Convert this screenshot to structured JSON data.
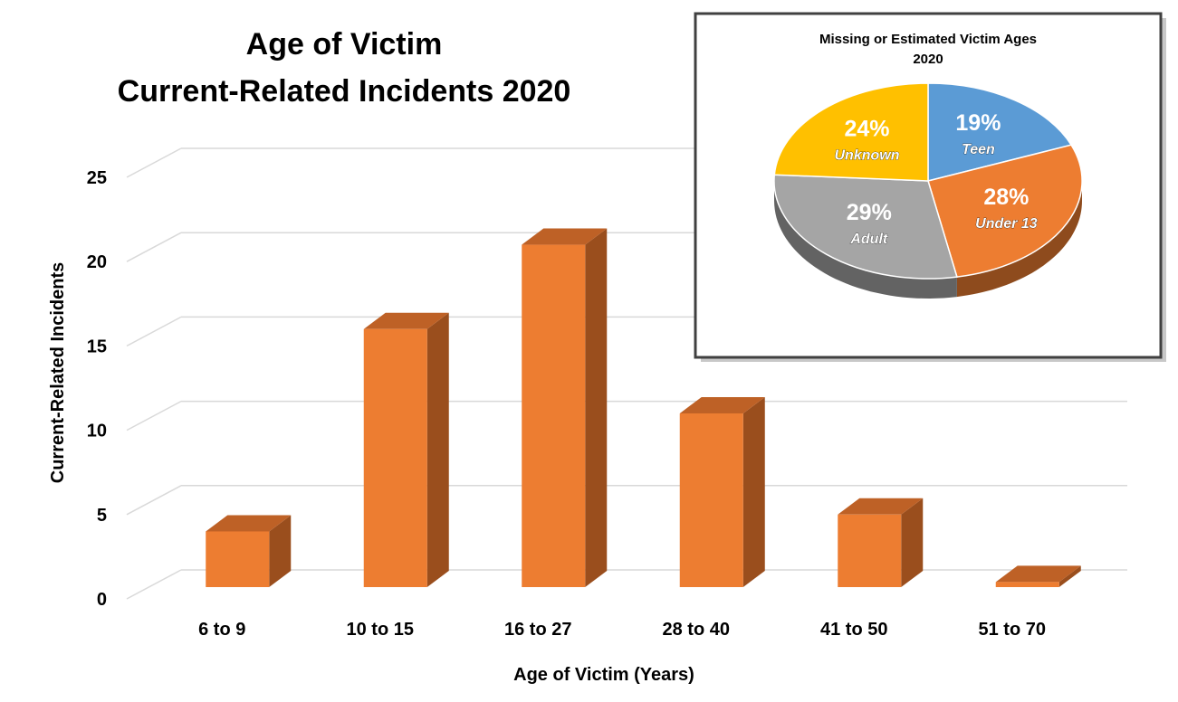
{
  "chart_data": [
    {
      "type": "bar",
      "title": "Age of Victim",
      "subtitle": "Current-Related Incidents 2020",
      "xlabel": "Age of Victim (Years)",
      "ylabel": "Current-Related Incidents",
      "categories": [
        "6 to 9",
        "10 to 15",
        "16 to 27",
        "28 to 40",
        "41 to 50",
        "51 to 70"
      ],
      "values": [
        4,
        16,
        21,
        11,
        5,
        1
      ],
      "ylim": [
        0,
        25
      ],
      "yticks": [
        "0",
        "5",
        "10",
        "15",
        "20",
        "25"
      ],
      "grid": true,
      "style": "3d",
      "colors": {
        "bar_front": "#ED7D31",
        "bar_side": "#9A4E1D",
        "bar_top": "#BE6126",
        "grid": "#D9D9D9"
      }
    },
    {
      "type": "pie",
      "title": "Missing or Estimated Victim Ages",
      "subtitle": "2020",
      "style": "3d",
      "slices": [
        {
          "label": "Teen",
          "value": 19,
          "display": "19%",
          "color": "#5B9BD5"
        },
        {
          "label": "Under 13",
          "value": 28,
          "display": "28%",
          "color": "#ED7D31"
        },
        {
          "label": "Adult",
          "value": 29,
          "display": "29%",
          "color": "#A5A5A5"
        },
        {
          "label": "Unknown",
          "value": 24,
          "display": "24%",
          "color": "#FFC000"
        }
      ]
    }
  ]
}
